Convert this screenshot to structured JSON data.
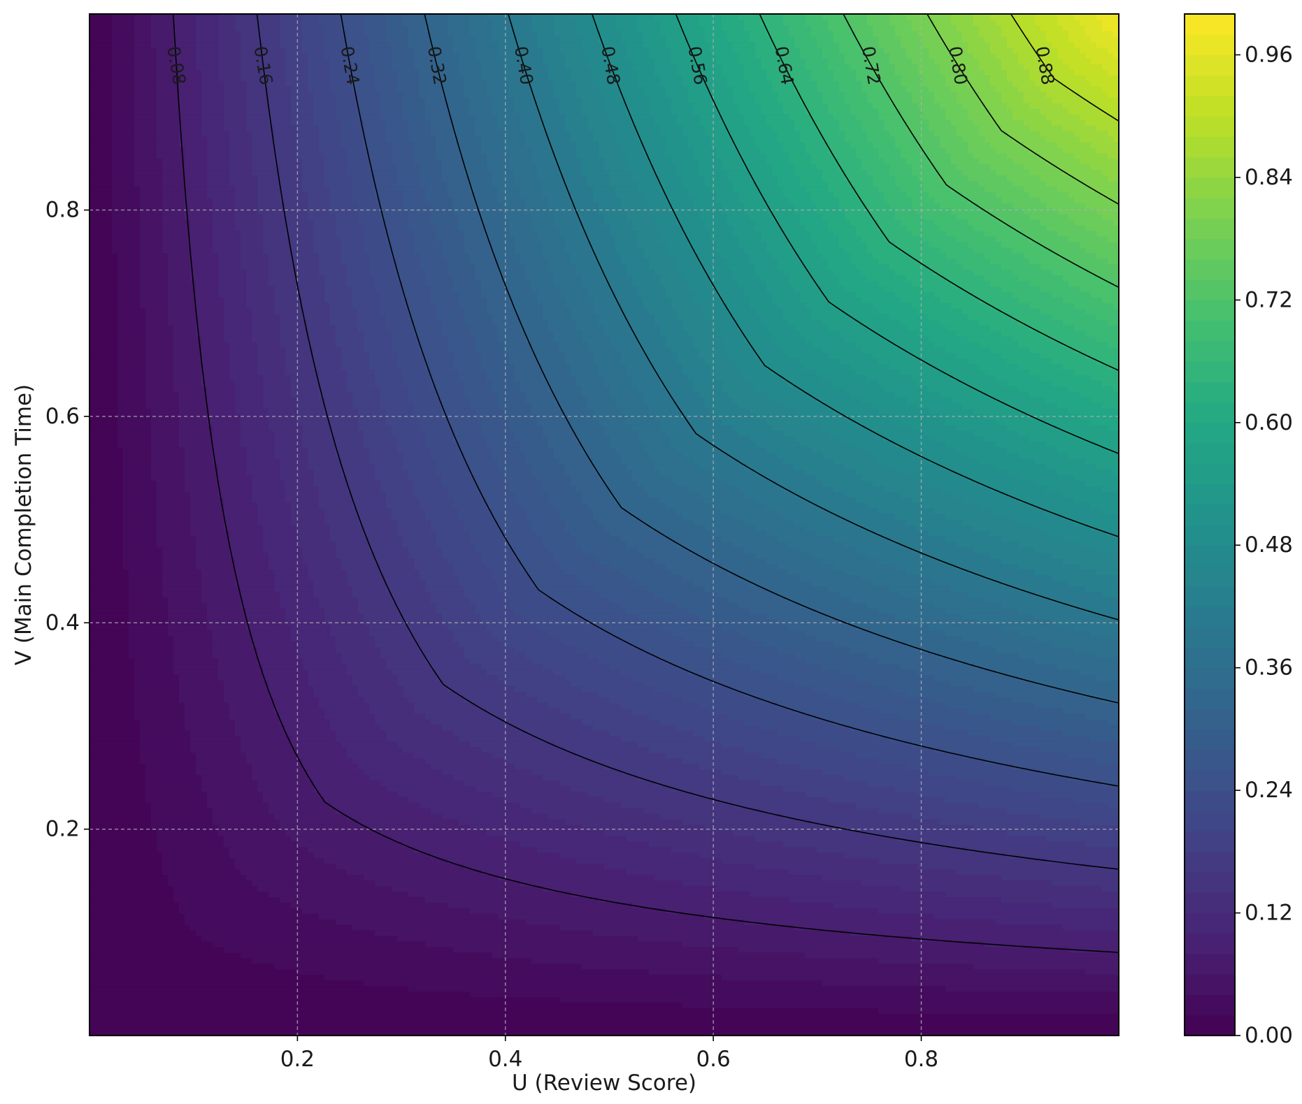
{
  "chart_data": {
    "type": "contour",
    "function": "z = min(u, v) ^ a * (u * v) ^ (1 - a), a = 0.3",
    "xlabel": "U (Review Score)",
    "ylabel": "V (Main Completion Time)",
    "xlim": [
      0.0,
      0.99
    ],
    "ylim": [
      0.0,
      0.99
    ],
    "xticks": [
      "0.2",
      "0.4",
      "0.6",
      "0.8"
    ],
    "xtick_values": [
      0.2,
      0.4,
      0.6,
      0.8
    ],
    "yticks": [
      "0.2",
      "0.4",
      "0.6",
      "0.8"
    ],
    "ytick_values": [
      0.2,
      0.4,
      0.6,
      0.8
    ],
    "grid": true,
    "colormap": "viridis",
    "colorbar": {
      "ticks": [
        "0.00",
        "0.12",
        "0.24",
        "0.36",
        "0.48",
        "0.60",
        "0.72",
        "0.84",
        "0.96"
      ],
      "tick_values": [
        0.0,
        0.12,
        0.24,
        0.36,
        0.48,
        0.6,
        0.72,
        0.84,
        0.96
      ],
      "range": [
        0.0,
        1.0
      ],
      "levels": 50
    },
    "contour_levels": [
      0.08,
      0.16,
      0.24,
      0.32,
      0.4,
      0.48,
      0.56,
      0.64,
      0.72,
      0.8,
      0.88
    ],
    "contour_labels": [
      "0.08",
      "0.16",
      "0.24",
      "0.32",
      "0.40",
      "0.48",
      "0.56",
      "0.64",
      "0.72",
      "0.80",
      "0.88"
    ],
    "colors": {
      "contour_line": "#000000",
      "grid": "#b0b0b0"
    }
  }
}
